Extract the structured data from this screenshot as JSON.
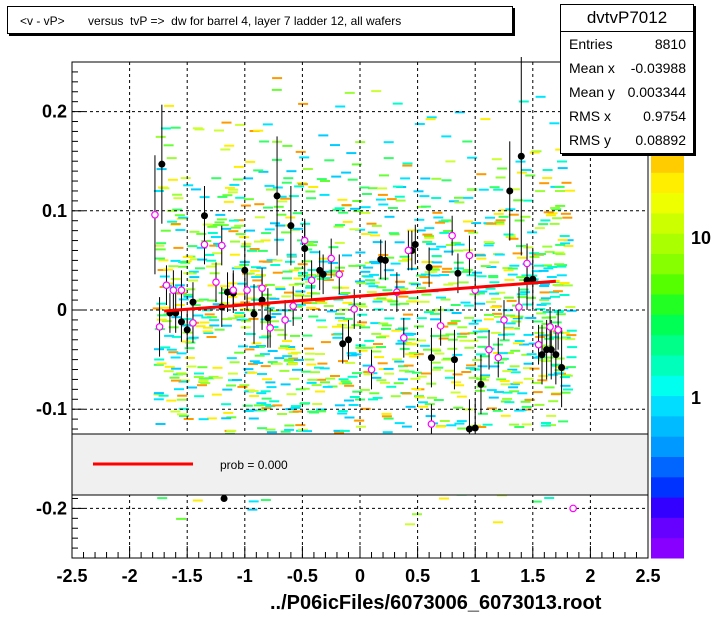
{
  "title": "<v - vP>       versus  tvP =>  dw for barrel 4, layer 7 ladder 12, all wafers",
  "footer": "../P06icFiles/6073006_6073013.root",
  "stats": {
    "name": "dvtvP7012",
    "rows": [
      {
        "label": "Entries",
        "value": "8810"
      },
      {
        "label": "Mean x",
        "value": "-0.03988"
      },
      {
        "label": "Mean y",
        "value": "0.003344"
      },
      {
        "label": "RMS x",
        "value": "0.9754"
      },
      {
        "label": "RMS y",
        "value": "0.08892"
      }
    ]
  },
  "legend": {
    "label": "prob = 0.000",
    "line_color": "#ff0000"
  },
  "colors": {
    "fit_line": "#ff0000",
    "profile_black": "#000000",
    "profile_open": "#ff00ff"
  },
  "chart_data": {
    "type": "scatter",
    "xlim": [
      -2.5,
      2.5
    ],
    "ylim": [
      -0.25,
      0.25
    ],
    "x_ticks": [
      "-2.5",
      "-2",
      "-1.5",
      "-1",
      "-0.5",
      "0",
      "0.5",
      "1",
      "1.5",
      "2",
      "2.5"
    ],
    "y_ticks": [
      "0.2",
      "0.1",
      "0",
      "-0.1",
      "-0.2"
    ],
    "palette_ticks": [
      "10",
      "1"
    ],
    "grid": true,
    "fit_line": {
      "x": [
        -1.7,
        1.7
      ],
      "y": [
        -0.001,
        0.029
      ]
    },
    "profile_black": [
      {
        "x": -1.72,
        "y": 0.147,
        "e": 0.06
      },
      {
        "x": -1.65,
        "y": -0.003,
        "e": 0.02
      },
      {
        "x": -1.6,
        "y": -0.003,
        "e": 0.02
      },
      {
        "x": -1.55,
        "y": -0.012,
        "e": 0.02
      },
      {
        "x": -1.5,
        "y": -0.02,
        "e": 0.02
      },
      {
        "x": -1.45,
        "y": 0.008,
        "e": 0.02
      },
      {
        "x": -1.35,
        "y": 0.095,
        "e": 0.03
      },
      {
        "x": -1.2,
        "y": 0.003,
        "e": 0.02
      },
      {
        "x": -1.15,
        "y": 0.018,
        "e": 0.02
      },
      {
        "x": -1.1,
        "y": 0.017,
        "e": 0.02
      },
      {
        "x": -1.0,
        "y": 0.04,
        "e": 0.03
      },
      {
        "x": -0.92,
        "y": -0.004,
        "e": 0.03
      },
      {
        "x": -0.85,
        "y": 0.01,
        "e": 0.03
      },
      {
        "x": -0.8,
        "y": -0.008,
        "e": 0.03
      },
      {
        "x": -0.72,
        "y": 0.115,
        "e": 0.06
      },
      {
        "x": -0.6,
        "y": 0.085,
        "e": 0.04
      },
      {
        "x": -0.48,
        "y": 0.062,
        "e": 0.03
      },
      {
        "x": -0.35,
        "y": 0.04,
        "e": 0.02
      },
      {
        "x": -0.32,
        "y": 0.036,
        "e": 0.02
      },
      {
        "x": -0.15,
        "y": -0.034,
        "e": 0.02
      },
      {
        "x": -0.1,
        "y": -0.03,
        "e": 0.02
      },
      {
        "x": 0.18,
        "y": 0.051,
        "e": 0.02
      },
      {
        "x": 0.22,
        "y": 0.05,
        "e": 0.02
      },
      {
        "x": 0.45,
        "y": 0.06,
        "e": 0.02
      },
      {
        "x": 0.48,
        "y": 0.066,
        "e": 0.02
      },
      {
        "x": 0.6,
        "y": 0.043,
        "e": 0.02
      },
      {
        "x": 0.62,
        "y": -0.048,
        "e": 0.03
      },
      {
        "x": 0.85,
        "y": 0.037,
        "e": 0.02
      },
      {
        "x": 0.82,
        "y": -0.05,
        "e": 0.03
      },
      {
        "x": 0.95,
        "y": -0.12,
        "e": 0.03
      },
      {
        "x": 1.0,
        "y": -0.119,
        "e": 0.03
      },
      {
        "x": 1.05,
        "y": -0.075,
        "e": 0.03
      },
      {
        "x": 1.3,
        "y": 0.12,
        "e": 0.05
      },
      {
        "x": 1.4,
        "y": 0.155,
        "e": 0.1
      },
      {
        "x": 1.45,
        "y": 0.03,
        "e": 0.03
      },
      {
        "x": 1.5,
        "y": 0.031,
        "e": 0.03
      },
      {
        "x": 1.58,
        "y": -0.045,
        "e": 0.03
      },
      {
        "x": 1.62,
        "y": -0.04,
        "e": 0.03
      },
      {
        "x": 1.66,
        "y": -0.04,
        "e": 0.03
      },
      {
        "x": 1.7,
        "y": -0.045,
        "e": 0.03
      },
      {
        "x": 1.75,
        "y": -0.058,
        "e": 0.04
      },
      {
        "x": -1.18,
        "y": -0.19,
        "e": 0.0
      }
    ],
    "profile_open": [
      {
        "x": -1.78,
        "y": 0.096,
        "e": 0.06
      },
      {
        "x": -1.74,
        "y": -0.017,
        "e": 0.03
      },
      {
        "x": -1.68,
        "y": 0.025,
        "e": 0.02
      },
      {
        "x": -1.62,
        "y": 0.02,
        "e": 0.02
      },
      {
        "x": -1.55,
        "y": 0.02,
        "e": 0.02
      },
      {
        "x": -1.45,
        "y": -0.013,
        "e": 0.02
      },
      {
        "x": -1.35,
        "y": 0.066,
        "e": 0.02
      },
      {
        "x": -1.25,
        "y": 0.028,
        "e": 0.02
      },
      {
        "x": -1.2,
        "y": 0.065,
        "e": 0.02
      },
      {
        "x": -1.1,
        "y": 0.02,
        "e": 0.02
      },
      {
        "x": -0.98,
        "y": 0.02,
        "e": 0.02
      },
      {
        "x": -0.85,
        "y": 0.022,
        "e": 0.02
      },
      {
        "x": -0.78,
        "y": -0.018,
        "e": 0.02
      },
      {
        "x": -0.65,
        "y": -0.01,
        "e": 0.02
      },
      {
        "x": -0.58,
        "y": 0.004,
        "e": 0.02
      },
      {
        "x": -0.48,
        "y": 0.07,
        "e": 0.02
      },
      {
        "x": -0.42,
        "y": 0.03,
        "e": 0.02
      },
      {
        "x": -0.25,
        "y": 0.052,
        "e": 0.02
      },
      {
        "x": -0.18,
        "y": 0.036,
        "e": 0.02
      },
      {
        "x": -0.05,
        "y": 0.001,
        "e": 0.02
      },
      {
        "x": 0.1,
        "y": -0.06,
        "e": 0.02
      },
      {
        "x": 0.32,
        "y": 0.018,
        "e": 0.02
      },
      {
        "x": 0.38,
        "y": -0.028,
        "e": 0.02
      },
      {
        "x": 0.42,
        "y": 0.06,
        "e": 0.02
      },
      {
        "x": 0.62,
        "y": -0.115,
        "e": 0.02
      },
      {
        "x": 0.7,
        "y": -0.016,
        "e": 0.02
      },
      {
        "x": 0.8,
        "y": 0.075,
        "e": 0.02
      },
      {
        "x": 0.95,
        "y": 0.055,
        "e": 0.02
      },
      {
        "x": 1.0,
        "y": 0.02,
        "e": 0.02
      },
      {
        "x": 1.12,
        "y": -0.04,
        "e": 0.02
      },
      {
        "x": 1.2,
        "y": -0.048,
        "e": 0.02
      },
      {
        "x": 1.25,
        "y": -0.01,
        "e": 0.02
      },
      {
        "x": 1.38,
        "y": 0.003,
        "e": 0.02
      },
      {
        "x": 1.45,
        "y": 0.047,
        "e": 0.02
      },
      {
        "x": 1.55,
        "y": -0.035,
        "e": 0.02
      },
      {
        "x": 1.65,
        "y": -0.017,
        "e": 0.02
      },
      {
        "x": 1.72,
        "y": -0.02,
        "e": 0.02
      },
      {
        "x": 1.85,
        "y": -0.2,
        "e": 0.0
      }
    ]
  }
}
